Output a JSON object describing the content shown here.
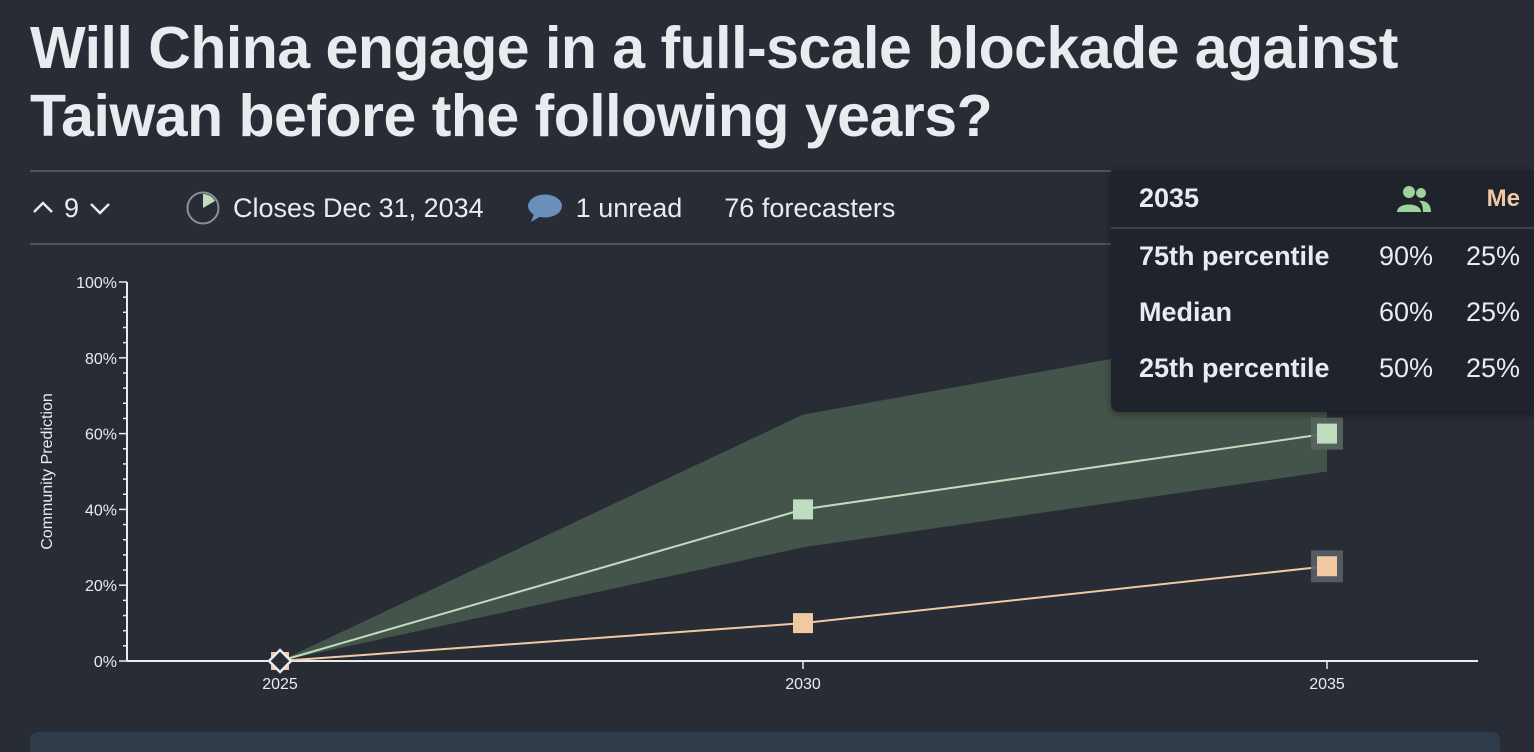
{
  "question": {
    "title_line1": "Will China engage in a full-scale blockade against",
    "title_line2": "Taiwan before the following years?"
  },
  "meta": {
    "votes": "9",
    "closes": "Closes Dec 31, 2034",
    "comments": "1 unread",
    "forecasters": "76 forecasters"
  },
  "colors": {
    "community": "#bfdcbf",
    "community_band": "#44544a",
    "me": "#f0c9a2",
    "axis": "#e9ecef"
  },
  "chart_data": {
    "type": "line",
    "title": "",
    "xlabel": "",
    "ylabel": "Community Prediction",
    "x": [
      "2025",
      "2030",
      "2035"
    ],
    "ylim": [
      0,
      100
    ],
    "y_ticks": [
      "0%",
      "20%",
      "40%",
      "60%",
      "80%",
      "100%"
    ],
    "series": [
      {
        "name": "Community median",
        "values": [
          0,
          40,
          60
        ]
      },
      {
        "name": "Community 25th percentile",
        "values": [
          0,
          30,
          50
        ]
      },
      {
        "name": "Community 75th percentile",
        "values": [
          0,
          65,
          90
        ]
      },
      {
        "name": "Me",
        "values": [
          0,
          10,
          25
        ]
      }
    ]
  },
  "tooltip": {
    "year": "2035",
    "community_icon": "users-icon",
    "me_label": "Me",
    "rows": [
      {
        "label": "75th percentile",
        "community": "90%",
        "me": "25%"
      },
      {
        "label": "Median",
        "community": "60%",
        "me": "25%"
      },
      {
        "label": "25th percentile",
        "community": "50%",
        "me": "25%"
      }
    ]
  }
}
